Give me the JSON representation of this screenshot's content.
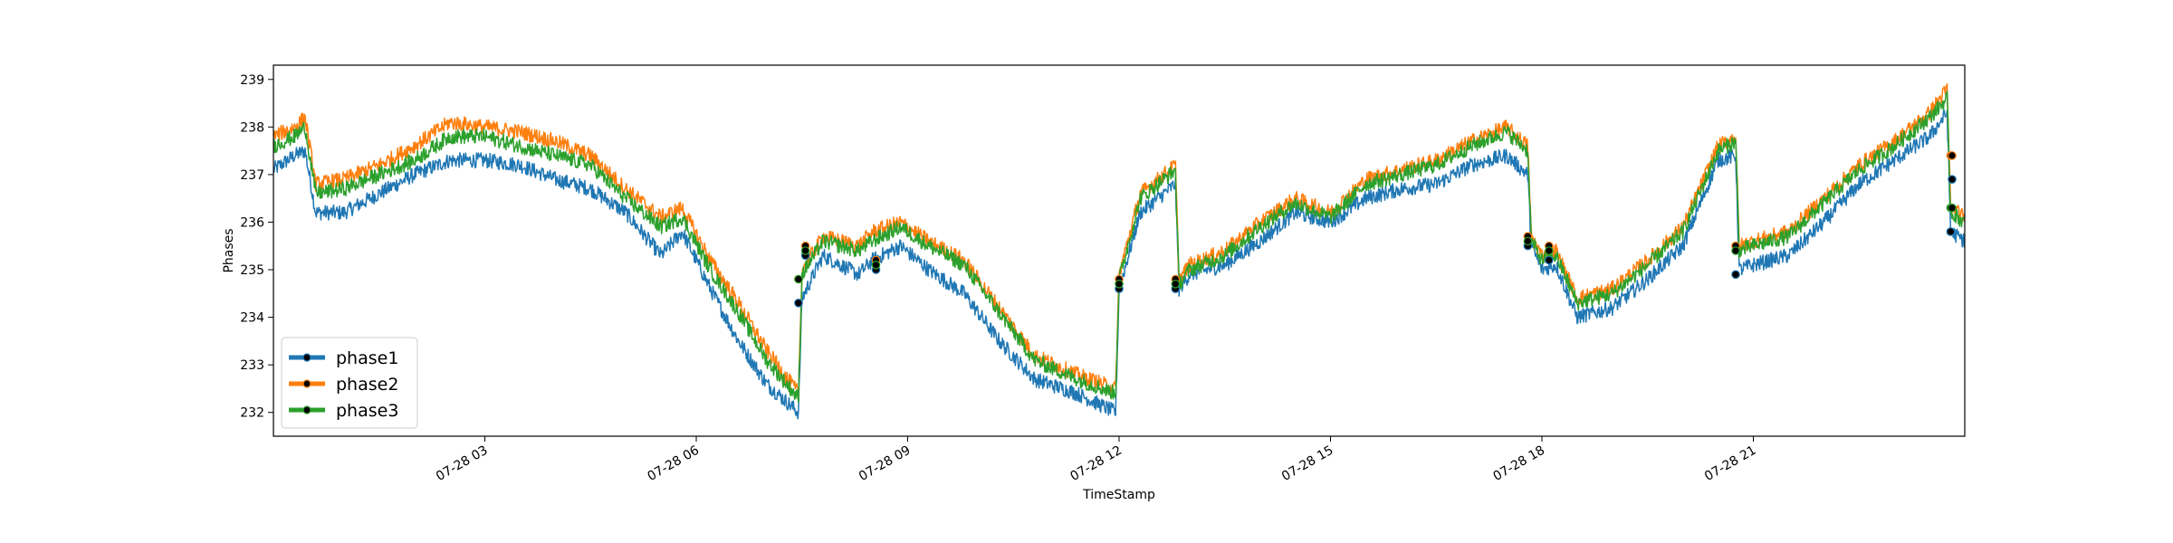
{
  "chart_data": {
    "type": "line",
    "title": "",
    "xlabel": "TimeStamp",
    "ylabel": "Phases",
    "xlim_hours": [
      0,
      24
    ],
    "ylim": [
      231.5,
      239.3
    ],
    "x_ticks": [
      {
        "hour": 3,
        "label": "07-28 03"
      },
      {
        "hour": 6,
        "label": "07-28 06"
      },
      {
        "hour": 9,
        "label": "07-28 09"
      },
      {
        "hour": 12,
        "label": "07-28 12"
      },
      {
        "hour": 15,
        "label": "07-28 15"
      },
      {
        "hour": 18,
        "label": "07-28 18"
      },
      {
        "hour": 21,
        "label": "07-28 21"
      }
    ],
    "y_ticks": [
      "232",
      "233",
      "234",
      "235",
      "236",
      "237",
      "238",
      "239"
    ],
    "grid": false,
    "legend_position": "lower-left",
    "series": [
      {
        "name": "phase1",
        "color": "#1f77b4",
        "x": [
          0,
          0.3,
          0.45,
          0.6,
          1.0,
          1.5,
          2.0,
          2.5,
          3.0,
          3.5,
          4.0,
          4.5,
          5.0,
          5.5,
          5.8,
          6.2,
          6.6,
          7.0,
          7.45,
          7.5,
          7.8,
          8.3,
          8.5,
          8.9,
          9.3,
          9.8,
          10.3,
          10.8,
          11.4,
          11.95,
          12.0,
          12.3,
          12.8,
          12.85,
          13.0,
          13.5,
          14.0,
          14.5,
          15.0,
          15.5,
          16.0,
          16.5,
          17.0,
          17.5,
          17.8,
          17.85,
          18.0,
          18.2,
          18.5,
          19.0,
          19.5,
          20.0,
          20.5,
          20.75,
          20.8,
          21.0,
          21.5,
          22.0,
          22.5,
          23.0,
          23.5,
          23.75,
          23.8,
          24.0
        ],
        "y": [
          237.1,
          237.4,
          237.5,
          236.2,
          236.2,
          236.6,
          237.0,
          237.3,
          237.3,
          237.2,
          236.9,
          236.7,
          236.2,
          235.3,
          235.8,
          234.6,
          233.5,
          232.6,
          232.0,
          234.4,
          235.3,
          234.9,
          235.2,
          235.5,
          235.0,
          234.5,
          233.5,
          232.7,
          232.4,
          232.0,
          234.6,
          236.2,
          236.8,
          234.6,
          234.9,
          235.1,
          235.6,
          236.2,
          236.0,
          236.5,
          236.7,
          236.8,
          237.2,
          237.4,
          237.0,
          235.5,
          235.0,
          235.1,
          234.0,
          234.2,
          234.8,
          235.5,
          237.3,
          237.4,
          235.0,
          235.1,
          235.3,
          236.0,
          236.8,
          237.3,
          237.8,
          238.3,
          235.8,
          235.6
        ]
      },
      {
        "name": "phase2",
        "color": "#ff7f0e",
        "x": [
          0,
          0.3,
          0.45,
          0.6,
          1.0,
          1.5,
          2.0,
          2.5,
          3.0,
          3.5,
          4.0,
          4.5,
          5.0,
          5.5,
          5.8,
          6.2,
          6.6,
          7.0,
          7.45,
          7.5,
          7.8,
          8.3,
          8.5,
          8.9,
          9.3,
          9.8,
          10.3,
          10.8,
          11.4,
          11.95,
          12.0,
          12.3,
          12.8,
          12.85,
          13.0,
          13.5,
          14.0,
          14.5,
          15.0,
          15.5,
          16.0,
          16.5,
          17.0,
          17.5,
          17.8,
          17.85,
          18.0,
          18.2,
          18.5,
          19.0,
          19.5,
          20.0,
          20.5,
          20.75,
          20.8,
          21.0,
          21.5,
          22.0,
          22.5,
          23.0,
          23.5,
          23.75,
          23.8,
          24.0
        ],
        "y": [
          237.8,
          238.0,
          238.2,
          236.8,
          236.9,
          237.2,
          237.6,
          238.1,
          238.0,
          237.9,
          237.7,
          237.4,
          236.7,
          236.1,
          236.3,
          235.2,
          234.3,
          233.3,
          232.4,
          235.0,
          235.7,
          235.5,
          235.8,
          236.0,
          235.6,
          235.2,
          234.2,
          233.2,
          232.8,
          232.5,
          234.9,
          236.6,
          237.2,
          234.8,
          235.1,
          235.4,
          236.0,
          236.5,
          236.2,
          236.9,
          237.1,
          237.3,
          237.7,
          238.0,
          237.6,
          235.7,
          235.3,
          235.4,
          234.4,
          234.6,
          235.2,
          235.9,
          237.6,
          237.8,
          235.5,
          235.6,
          235.8,
          236.5,
          237.2,
          237.7,
          238.3,
          238.8,
          236.3,
          236.1
        ]
      },
      {
        "name": "phase3",
        "color": "#2ca02c",
        "x": [
          0,
          0.3,
          0.45,
          0.6,
          1.0,
          1.5,
          2.0,
          2.5,
          3.0,
          3.5,
          4.0,
          4.5,
          5.0,
          5.5,
          5.8,
          6.2,
          6.6,
          7.0,
          7.45,
          7.5,
          7.8,
          8.3,
          8.5,
          8.9,
          9.3,
          9.8,
          10.3,
          10.8,
          11.4,
          11.95,
          12.0,
          12.3,
          12.8,
          12.85,
          13.0,
          13.5,
          14.0,
          14.5,
          15.0,
          15.5,
          16.0,
          16.5,
          17.0,
          17.5,
          17.8,
          17.85,
          18.0,
          18.2,
          18.5,
          19.0,
          19.5,
          20.0,
          20.5,
          20.75,
          20.8,
          21.0,
          21.5,
          22.0,
          22.5,
          23.0,
          23.5,
          23.75,
          23.8,
          24.0
        ],
        "y": [
          237.6,
          237.8,
          238.0,
          236.6,
          236.7,
          237.0,
          237.3,
          237.8,
          237.8,
          237.6,
          237.4,
          237.2,
          236.5,
          235.9,
          236.1,
          235.0,
          234.1,
          233.1,
          232.3,
          234.9,
          235.6,
          235.4,
          235.6,
          235.9,
          235.5,
          235.1,
          234.1,
          233.1,
          232.7,
          232.4,
          234.8,
          236.5,
          237.1,
          234.7,
          235.0,
          235.3,
          235.9,
          236.4,
          236.1,
          236.8,
          237.0,
          237.2,
          237.6,
          237.9,
          237.5,
          235.6,
          235.2,
          235.3,
          234.3,
          234.5,
          235.1,
          235.8,
          237.5,
          237.7,
          235.4,
          235.5,
          235.7,
          236.4,
          237.1,
          237.6,
          238.2,
          238.6,
          236.2,
          236.0
        ]
      }
    ],
    "markers": [
      {
        "x": 7.45,
        "y": [
          234.3,
          234.8,
          234.8
        ]
      },
      {
        "x": 7.55,
        "y": [
          235.3,
          235.5,
          235.4
        ]
      },
      {
        "x": 8.55,
        "y": [
          235.0,
          235.2,
          235.1
        ]
      },
      {
        "x": 12.0,
        "y": [
          234.6,
          234.8,
          234.7
        ]
      },
      {
        "x": 12.8,
        "y": [
          234.6,
          234.8,
          234.7
        ]
      },
      {
        "x": 17.8,
        "y": [
          235.5,
          235.7,
          235.6
        ]
      },
      {
        "x": 18.1,
        "y": [
          235.2,
          235.5,
          235.4
        ]
      },
      {
        "x": 20.75,
        "y": [
          234.9,
          235.5,
          235.4
        ]
      },
      {
        "x": 23.8,
        "y": [
          235.8,
          237.4,
          236.3
        ]
      },
      {
        "x": 23.82,
        "y": [
          236.9,
          237.4,
          236.3
        ]
      }
    ]
  }
}
